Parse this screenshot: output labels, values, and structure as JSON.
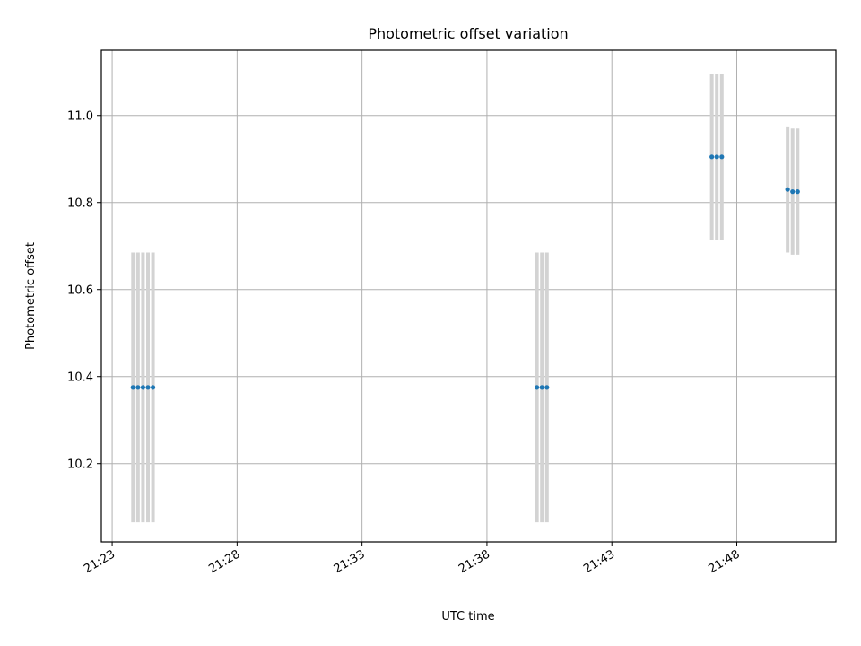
{
  "chart_data": {
    "type": "scatter",
    "title": "Photometric offset variation",
    "xlabel": "UTC time",
    "ylabel": "Photometric offset",
    "x_ticks": [
      "21:23",
      "21:28",
      "21:33",
      "21:38",
      "21:43",
      "21:48"
    ],
    "y_ticks": [
      "10.2",
      "10.4",
      "10.6",
      "10.8",
      "11.0"
    ],
    "xlim": [
      "21:22:34",
      "21:51:58"
    ],
    "ylim": [
      10.02,
      11.15
    ],
    "grid": true,
    "colors": {
      "points": "#1f77b4",
      "errorbars": "#d3d3d3",
      "grid": "#b0b0b0"
    },
    "series": [
      {
        "points": [
          {
            "x": "21:23:50",
            "y": 10.375,
            "err": 0.31
          },
          {
            "x": "21:24:02",
            "y": 10.375,
            "err": 0.31
          },
          {
            "x": "21:24:14",
            "y": 10.375,
            "err": 0.31
          },
          {
            "x": "21:24:26",
            "y": 10.375,
            "err": 0.31
          },
          {
            "x": "21:24:38",
            "y": 10.375,
            "err": 0.31
          },
          {
            "x": "21:40:00",
            "y": 10.375,
            "err": 0.31
          },
          {
            "x": "21:40:12",
            "y": 10.375,
            "err": 0.31
          },
          {
            "x": "21:40:24",
            "y": 10.375,
            "err": 0.31
          },
          {
            "x": "21:47:00",
            "y": 10.905,
            "err": 0.19
          },
          {
            "x": "21:47:12",
            "y": 10.905,
            "err": 0.19
          },
          {
            "x": "21:47:24",
            "y": 10.905,
            "err": 0.19
          },
          {
            "x": "21:50:02",
            "y": 10.83,
            "err": 0.145
          },
          {
            "x": "21:50:14",
            "y": 10.825,
            "err": 0.145
          },
          {
            "x": "21:50:26",
            "y": 10.825,
            "err": 0.145
          }
        ]
      }
    ]
  }
}
